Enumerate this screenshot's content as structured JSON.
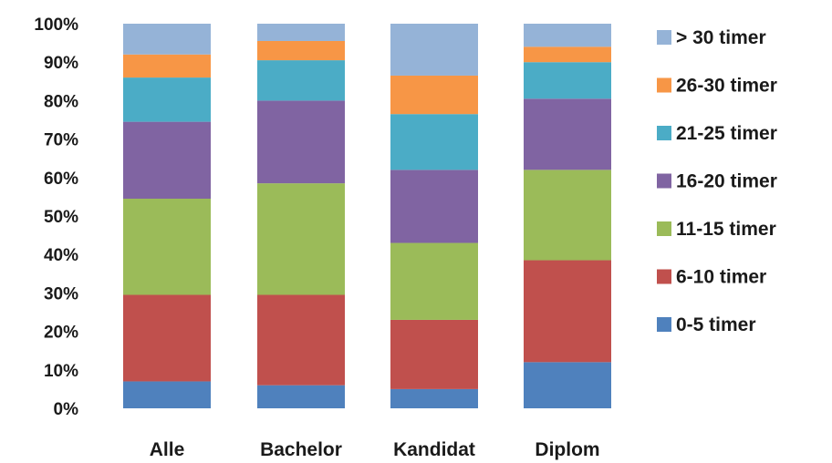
{
  "chart_data": {
    "type": "bar",
    "stacked": true,
    "percent": true,
    "title": "",
    "xlabel": "",
    "ylabel": "",
    "ylim": [
      0,
      100
    ],
    "yticks": [
      "0%",
      "10%",
      "20%",
      "30%",
      "40%",
      "50%",
      "60%",
      "70%",
      "80%",
      "90%",
      "100%"
    ],
    "categories": [
      "Alle",
      "Bachelor",
      "Kandidat",
      "Diplom"
    ],
    "grid": false,
    "legend_position": "right",
    "series": [
      {
        "name": "0-5  timer",
        "color": "#4f81bd",
        "values": [
          7,
          6,
          5,
          12
        ]
      },
      {
        "name": "6-10 timer",
        "color": "#c0504d",
        "values": [
          22.5,
          23.5,
          18,
          26.5
        ]
      },
      {
        "name": "11-15 timer",
        "color": "#9bbb59",
        "values": [
          25,
          29,
          20,
          23.5
        ]
      },
      {
        "name": "16-20 timer",
        "color": "#8064a2",
        "values": [
          20,
          21.5,
          19,
          18.5
        ]
      },
      {
        "name": "21-25 timer",
        "color": "#4bacc6",
        "values": [
          11.5,
          10.5,
          14.5,
          9.5
        ]
      },
      {
        "name": "26-30 timer",
        "color": "#f79646",
        "values": [
          6,
          5,
          10,
          4
        ]
      },
      {
        "name": "> 30 timer",
        "color": "#95b3d7",
        "values": [
          8,
          4.5,
          13.5,
          6
        ]
      }
    ]
  }
}
